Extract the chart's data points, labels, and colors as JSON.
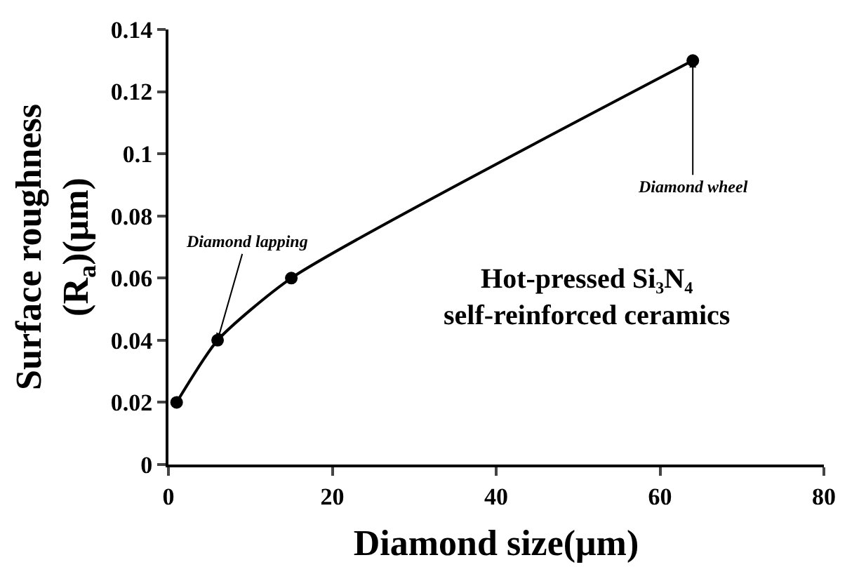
{
  "chart_data": {
    "type": "line",
    "x": [
      1,
      6,
      15,
      64
    ],
    "series": [
      {
        "color": "#000000",
        "values": [
          0.02,
          0.04,
          0.06,
          0.13
        ]
      }
    ],
    "xlabel": "Diamond size(μm)",
    "ylabel": "Surface roughness\n(R$_{a}$)(μm)",
    "xlim": [
      0,
      80
    ],
    "xticks": [
      0,
      20,
      40,
      60,
      80
    ],
    "ylim": [
      0,
      0.14
    ],
    "yticks": [
      0,
      0.02,
      0.04,
      0.06,
      0.08,
      0.1,
      0.12,
      0.14
    ],
    "annotations": [
      {
        "text": "Diamond lapping",
        "x": 6,
        "y": 0.04
      },
      {
        "text": "Diamond wheel",
        "x": 64,
        "y": 0.13
      },
      "Hot-pressed Si₃N₄\nself-reinforced ceramics"
    ],
    "marker": "circle",
    "line_style": "solid"
  }
}
